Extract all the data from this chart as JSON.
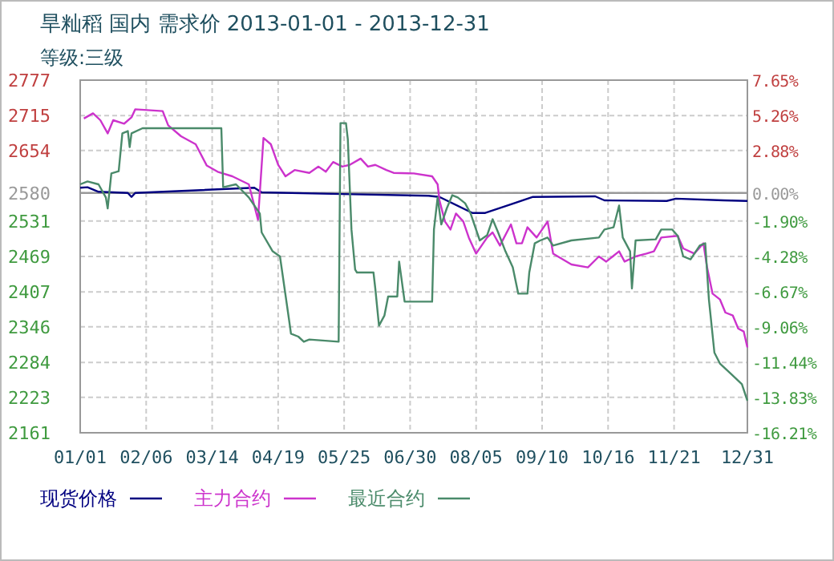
{
  "chart_data": {
    "type": "line",
    "title": "旱籼稻  国内  需求价  2013-01-01 - 2013-12-31",
    "subtitle": "等级:三级",
    "xlim": [
      "2013-01-01",
      "2013-12-31"
    ],
    "xticks": [
      {
        "value": "2013-01-01",
        "label": "01/01"
      },
      {
        "value": "2013-02-06",
        "label": "02/06"
      },
      {
        "value": "2013-03-14",
        "label": "03/14"
      },
      {
        "value": "2013-04-19",
        "label": "04/19"
      },
      {
        "value": "2013-05-25",
        "label": "05/25"
      },
      {
        "value": "2013-06-30",
        "label": "06/30"
      },
      {
        "value": "2013-08-05",
        "label": "08/05"
      },
      {
        "value": "2013-09-10",
        "label": "09/10"
      },
      {
        "value": "2013-10-16",
        "label": "10/16"
      },
      {
        "value": "2013-11-21",
        "label": "11/21"
      },
      {
        "value": "2013-12-31",
        "label": "12/31"
      }
    ],
    "ylim": [
      2161,
      2777
    ],
    "yticks": [
      2161,
      2223,
      2284,
      2346,
      2407,
      2469,
      2531,
      2580,
      2654,
      2715,
      2777
    ],
    "y2lim": [
      -16.21,
      7.65
    ],
    "y2ticks": [
      {
        "value": -16.21,
        "label": "-16.21%"
      },
      {
        "value": -13.83,
        "label": "-13.83%"
      },
      {
        "value": -11.44,
        "label": "-11.44%"
      },
      {
        "value": -9.06,
        "label": "-9.06%"
      },
      {
        "value": -6.67,
        "label": "-6.67%"
      },
      {
        "value": -4.28,
        "label": "-4.28%"
      },
      {
        "value": -1.9,
        "label": "-1.90%"
      },
      {
        "value": 0,
        "label": "0.00%"
      },
      {
        "value": 2.88,
        "label": "2.88%"
      },
      {
        "value": 5.26,
        "label": "5.26%"
      },
      {
        "value": 7.65,
        "label": "7.65%"
      }
    ],
    "ref_lines": [
      {
        "axis": "y",
        "value": 2580,
        "color": "#999999"
      }
    ],
    "grid": true,
    "legend": "bottom",
    "marker": "none",
    "line_style": "solid",
    "series": [
      {
        "name": "现货价格",
        "color": "#000080",
        "x": [
          "2013-01-01",
          "2013-01-05",
          "2013-01-11",
          "2013-01-27",
          "2013-01-29",
          "2013-01-31",
          "2013-04-06",
          "2013-04-10",
          "2013-05-24",
          "2013-07-10",
          "2013-07-16",
          "2013-08-03",
          "2013-08-10",
          "2013-09-05",
          "2013-10-09",
          "2013-10-14",
          "2013-11-17",
          "2013-11-22",
          "2013-12-18",
          "2013-12-31"
        ],
        "values": [
          2589,
          2590,
          2582,
          2580,
          2573,
          2580,
          2589,
          2581,
          2578,
          2575,
          2573,
          2545,
          2545,
          2573,
          2574,
          2567,
          2566,
          2570,
          2567,
          2566
        ]
      },
      {
        "name": "主力合约",
        "color": "#cc33cc",
        "x": [
          "2013-01-03",
          "2013-01-08",
          "2013-01-12",
          "2013-01-16",
          "2013-01-19",
          "2013-01-25",
          "2013-01-29",
          "2013-01-31",
          "2013-02-15",
          "2013-02-18",
          "2013-02-25",
          "2013-03-05",
          "2013-03-11",
          "2013-03-17",
          "2013-03-25",
          "2013-04-03",
          "2013-04-08",
          "2013-04-11",
          "2013-04-15",
          "2013-04-19",
          "2013-04-23",
          "2013-04-28",
          "2013-05-06",
          "2013-05-11",
          "2013-05-15",
          "2013-05-19",
          "2013-05-24",
          "2013-05-28",
          "2013-06-03",
          "2013-06-07",
          "2013-06-11",
          "2013-06-17",
          "2013-06-21",
          "2013-07-02",
          "2013-07-12",
          "2013-07-15",
          "2013-07-16",
          "2013-07-19",
          "2013-07-22",
          "2013-07-25",
          "2013-07-29",
          "2013-08-01",
          "2013-08-05",
          "2013-08-11",
          "2013-08-14",
          "2013-08-18",
          "2013-08-24",
          "2013-08-27",
          "2013-08-30",
          "2013-09-02",
          "2013-09-07",
          "2013-09-13",
          "2013-09-16",
          "2013-09-26",
          "2013-10-05",
          "2013-10-11",
          "2013-10-15",
          "2013-10-22",
          "2013-10-25",
          "2013-10-31",
          "2013-11-06",
          "2013-11-10",
          "2013-11-14",
          "2013-11-23",
          "2013-11-26",
          "2013-12-02",
          "2013-12-07",
          "2013-12-09",
          "2013-12-12",
          "2013-12-16",
          "2013-12-19",
          "2013-12-23",
          "2013-12-26",
          "2013-12-29",
          "2013-12-31"
        ],
        "values": [
          2710,
          2719,
          2707,
          2684,
          2707,
          2701,
          2712,
          2726,
          2723,
          2698,
          2679,
          2665,
          2628,
          2617,
          2609,
          2595,
          2533,
          2676,
          2665,
          2629,
          2609,
          2620,
          2615,
          2626,
          2617,
          2634,
          2626,
          2629,
          2640,
          2626,
          2629,
          2620,
          2615,
          2614,
          2609,
          2595,
          2567,
          2530,
          2516,
          2544,
          2530,
          2502,
          2474,
          2502,
          2511,
          2488,
          2525,
          2492,
          2492,
          2520,
          2502,
          2530,
          2474,
          2455,
          2450,
          2469,
          2460,
          2478,
          2460,
          2469,
          2474,
          2478,
          2502,
          2505,
          2483,
          2474,
          2492,
          2450,
          2404,
          2394,
          2371,
          2366,
          2343,
          2338,
          2310
        ]
      },
      {
        "name": "最近合约",
        "color": "#4a8a6a",
        "x": [
          "2013-01-01",
          "2013-01-05",
          "2013-01-11",
          "2013-01-15",
          "2013-01-16",
          "2013-01-18",
          "2013-01-22",
          "2013-01-24",
          "2013-01-27",
          "2013-01-28",
          "2013-01-29",
          "2013-02-04",
          "2013-03-19",
          "2013-03-20",
          "2013-03-27",
          "2013-04-03",
          "2013-04-09",
          "2013-04-10",
          "2013-04-16",
          "2013-04-20",
          "2013-04-25",
          "2013-04-26",
          "2013-04-30",
          "2013-05-03",
          "2013-05-06",
          "2013-05-22",
          "2013-05-23",
          "2013-05-26",
          "2013-05-27",
          "2013-05-29",
          "2013-05-31",
          "2013-06-01",
          "2013-06-10",
          "2013-06-11",
          "2013-06-13",
          "2013-06-16",
          "2013-06-18",
          "2013-06-23",
          "2013-06-24",
          "2013-06-27",
          "2013-07-12",
          "2013-07-13",
          "2013-07-15",
          "2013-07-17",
          "2013-07-20",
          "2013-07-23",
          "2013-07-26",
          "2013-07-30",
          "2013-08-02",
          "2013-08-07",
          "2013-08-11",
          "2013-08-14",
          "2013-08-17",
          "2013-08-21",
          "2013-08-25",
          "2013-08-28",
          "2013-09-02",
          "2013-09-03",
          "2013-09-06",
          "2013-09-09",
          "2013-09-13",
          "2013-09-16",
          "2013-09-26",
          "2013-10-11",
          "2013-10-14",
          "2013-10-19",
          "2013-10-22",
          "2013-10-24",
          "2013-10-28",
          "2013-10-29",
          "2013-10-31",
          "2013-11-11",
          "2013-11-14",
          "2013-11-20",
          "2013-11-23",
          "2013-11-26",
          "2013-11-30",
          "2013-12-05",
          "2013-12-08",
          "2013-12-10",
          "2013-12-13",
          "2013-12-16",
          "2013-12-22",
          "2013-12-28",
          "2013-12-31"
        ],
        "values": [
          2595,
          2600,
          2595,
          2572,
          2553,
          2614,
          2618,
          2684,
          2688,
          2660,
          2684,
          2693,
          2693,
          2590,
          2595,
          2572,
          2544,
          2511,
          2478,
          2469,
          2357,
          2334,
          2329,
          2320,
          2324,
          2320,
          2702,
          2702,
          2674,
          2516,
          2446,
          2441,
          2441,
          2413,
          2348,
          2366,
          2399,
          2399,
          2460,
          2390,
          2390,
          2516,
          2572,
          2525,
          2553,
          2576,
          2572,
          2562,
          2544,
          2497,
          2506,
          2534,
          2511,
          2478,
          2450,
          2404,
          2404,
          2441,
          2492,
          2497,
          2502,
          2488,
          2497,
          2502,
          2516,
          2520,
          2558,
          2502,
          2478,
          2413,
          2497,
          2499,
          2516,
          2516,
          2505,
          2469,
          2464,
          2488,
          2492,
          2394,
          2301,
          2282,
          2264,
          2246,
          2217
        ]
      }
    ]
  }
}
